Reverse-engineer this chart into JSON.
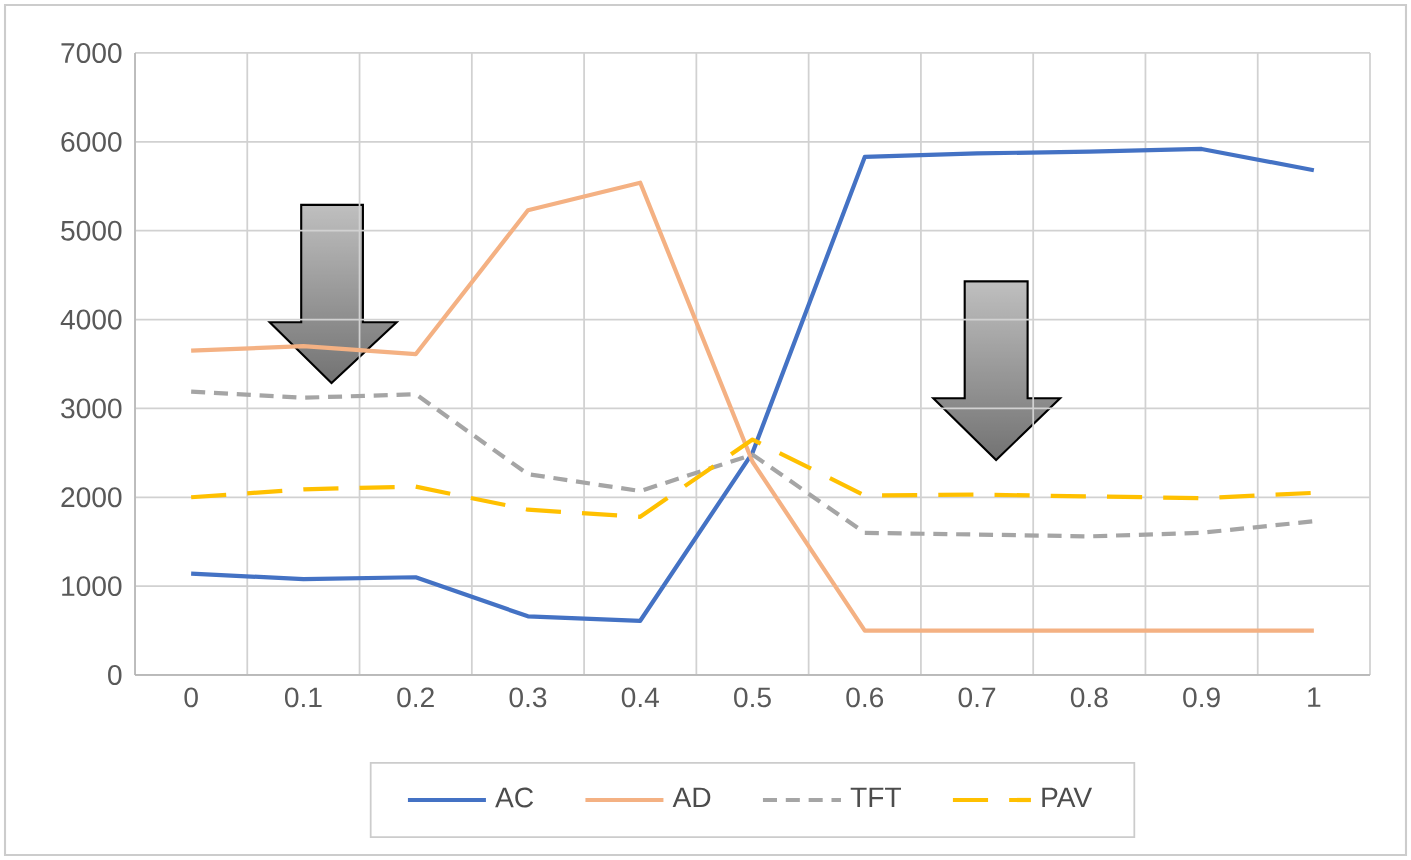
{
  "chart_data": {
    "type": "line",
    "categories": [
      "0",
      "0.1",
      "0.2",
      "0.3",
      "0.4",
      "0.5",
      "0.6",
      "0.7",
      "0.8",
      "0.9",
      "1"
    ],
    "series": [
      {
        "name": "AC",
        "color": "#4472c4",
        "line_style": "solid",
        "values": [
          1140,
          1080,
          1100,
          660,
          610,
          2500,
          5830,
          5870,
          5890,
          5920,
          5680
        ]
      },
      {
        "name": "AD",
        "color": "#f4b183",
        "line_style": "solid",
        "values": [
          3650,
          3700,
          3610,
          5230,
          5540,
          2400,
          500,
          500,
          500,
          500,
          500
        ]
      },
      {
        "name": "TFT",
        "color": "#a5a5a5",
        "line_style": "dotted",
        "values": [
          3190,
          3120,
          3160,
          2260,
          2070,
          2480,
          1600,
          1580,
          1560,
          1600,
          1730
        ]
      },
      {
        "name": "PAV",
        "color": "#ffc000",
        "line_style": "dashed",
        "values": [
          2000,
          2090,
          2120,
          1860,
          1780,
          2650,
          2020,
          2030,
          2010,
          1990,
          2050
        ]
      }
    ],
    "ylim": [
      0,
      7000
    ],
    "yticks": [
      0,
      1000,
      2000,
      3000,
      4000,
      5000,
      6000,
      7000
    ],
    "grid": true,
    "legend": "bottom",
    "marker": "none"
  }
}
